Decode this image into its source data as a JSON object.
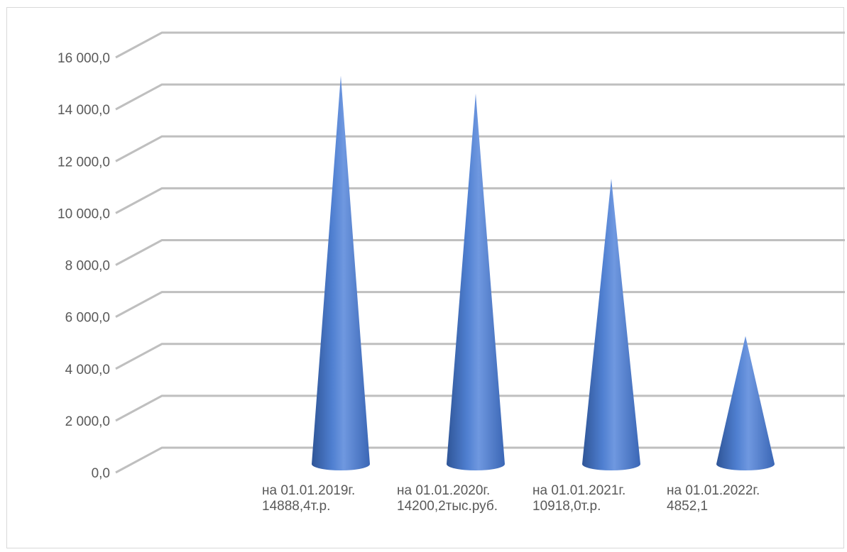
{
  "chart_data": {
    "type": "bar",
    "style": "3d-cone",
    "title": "",
    "xlabel": "",
    "ylabel": "",
    "categories": [
      "на 01.01.2019г.\n14888,4т.р.",
      "на 01.01.2020г.\n14200,2тыс.руб.",
      "на 01.01.2021г.\n10918,0т.р.",
      "на 01.01.2022г.\n4852,1"
    ],
    "values": [
      14888.4,
      14200.2,
      10918.0,
      4852.1
    ],
    "ylim": [
      0,
      16000
    ],
    "yticks": [
      0,
      2000,
      4000,
      6000,
      8000,
      10000,
      12000,
      14000,
      16000
    ],
    "ytick_labels": [
      "0,0",
      "2 000,0",
      "4 000,0",
      "6 000,0",
      "8 000,0",
      "10 000,0",
      "12 000,0",
      "14 000,0",
      "16 000,0"
    ],
    "grid": true,
    "legend": "none",
    "colors": {
      "cone": "#4472c4",
      "cone_highlight": "#7fa6e8",
      "cone_shadow": "#2f5597",
      "grid": "#bfbfbf",
      "text": "#595959"
    }
  }
}
